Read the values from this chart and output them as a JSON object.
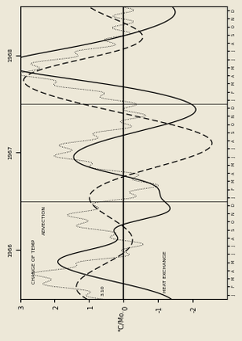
{
  "bg_color": "#ede8d8",
  "fig_width": 4.22,
  "fig_height": 3.0,
  "y_min": -3,
  "y_max": 3,
  "y_ticks": [
    -2,
    -1,
    0,
    1,
    2,
    3
  ],
  "y_tick_labels": [
    "-2",
    "-1",
    "0",
    "1",
    "2",
    "3"
  ],
  "ylabel": "°C/Mo.",
  "years": [
    "1966",
    "1967",
    "1968"
  ],
  "label_heat_exchange": "HEAT EXCHANGE",
  "label_advection": "ADVECTION",
  "label_change": "CHANGE OF TEMP"
}
